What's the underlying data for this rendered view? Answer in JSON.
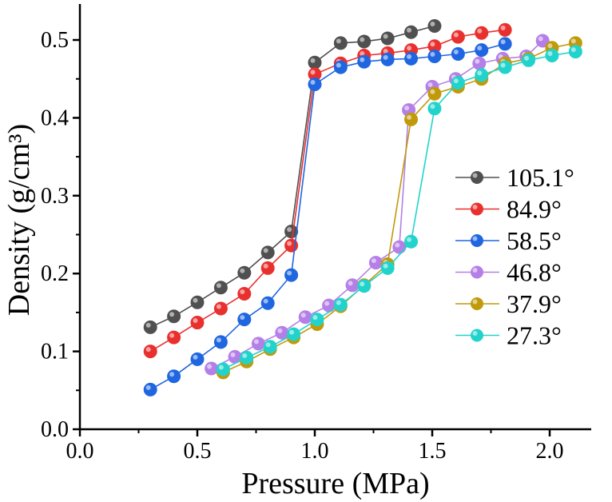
{
  "chart_data": {
    "type": "line",
    "title": "",
    "xlabel": "Pressure (MPa)",
    "ylabel": "Density (g/cm³)",
    "xlim": [
      0.0,
      2.25
    ],
    "ylim": [
      0.0,
      0.55
    ],
    "xticks": [
      "0.0",
      "0.5",
      "1.0",
      "1.5",
      "2.0"
    ],
    "yticks": [
      "0.0",
      "0.1",
      "0.2",
      "0.3",
      "0.4",
      "0.5"
    ],
    "grid": false,
    "legend_position": "right",
    "series": [
      {
        "name": "105.1°",
        "color": "#505050",
        "x": [
          0.3,
          0.4,
          0.5,
          0.6,
          0.7,
          0.8,
          0.9,
          1.0,
          1.11,
          1.21,
          1.31,
          1.41,
          1.51
        ],
        "y": [
          0.131,
          0.145,
          0.163,
          0.182,
          0.201,
          0.227,
          0.254,
          0.471,
          0.496,
          0.498,
          0.502,
          0.51,
          0.518
        ]
      },
      {
        "name": "84.9°",
        "color": "#e8312f",
        "x": [
          0.3,
          0.4,
          0.5,
          0.6,
          0.7,
          0.8,
          0.9,
          1.0,
          1.11,
          1.21,
          1.31,
          1.41,
          1.51,
          1.61,
          1.71,
          1.81
        ],
        "y": [
          0.1,
          0.118,
          0.137,
          0.155,
          0.174,
          0.207,
          0.236,
          0.456,
          0.47,
          0.48,
          0.483,
          0.487,
          0.492,
          0.504,
          0.509,
          0.513
        ]
      },
      {
        "name": "58.5°",
        "color": "#1f66e0",
        "x": [
          0.3,
          0.4,
          0.5,
          0.6,
          0.7,
          0.8,
          0.9,
          1.0,
          1.11,
          1.21,
          1.31,
          1.41,
          1.51,
          1.61,
          1.71,
          1.81
        ],
        "y": [
          0.051,
          0.068,
          0.09,
          0.112,
          0.141,
          0.162,
          0.198,
          0.443,
          0.465,
          0.472,
          0.475,
          0.476,
          0.479,
          0.482,
          0.487,
          0.495
        ]
      },
      {
        "name": "46.8°",
        "color": "#b57fe8",
        "x": [
          0.56,
          0.66,
          0.76,
          0.86,
          0.96,
          1.06,
          1.16,
          1.26,
          1.36,
          1.4,
          1.5,
          1.6,
          1.7,
          1.8,
          1.9,
          1.97
        ],
        "y": [
          0.078,
          0.093,
          0.11,
          0.124,
          0.144,
          0.159,
          0.185,
          0.214,
          0.234,
          0.41,
          0.44,
          0.45,
          0.47,
          0.476,
          0.479,
          0.499
        ]
      },
      {
        "name": "37.9°",
        "color": "#c09a0a",
        "x": [
          0.61,
          0.71,
          0.81,
          0.91,
          1.01,
          1.11,
          1.21,
          1.31,
          1.41,
          1.51,
          1.61,
          1.71,
          1.81,
          1.91,
          2.01,
          2.11
        ],
        "y": [
          0.073,
          0.087,
          0.103,
          0.118,
          0.135,
          0.158,
          0.185,
          0.212,
          0.398,
          0.431,
          0.44,
          0.45,
          0.47,
          0.476,
          0.49,
          0.496
        ]
      },
      {
        "name": "27.3°",
        "color": "#22d3cc",
        "x": [
          0.61,
          0.71,
          0.81,
          0.91,
          1.01,
          1.11,
          1.21,
          1.31,
          1.41,
          1.51,
          1.61,
          1.71,
          1.81,
          1.91,
          2.01,
          2.11
        ],
        "y": [
          0.077,
          0.092,
          0.106,
          0.122,
          0.141,
          0.16,
          0.184,
          0.207,
          0.241,
          0.412,
          0.445,
          0.455,
          0.465,
          0.474,
          0.48,
          0.485
        ]
      }
    ]
  }
}
